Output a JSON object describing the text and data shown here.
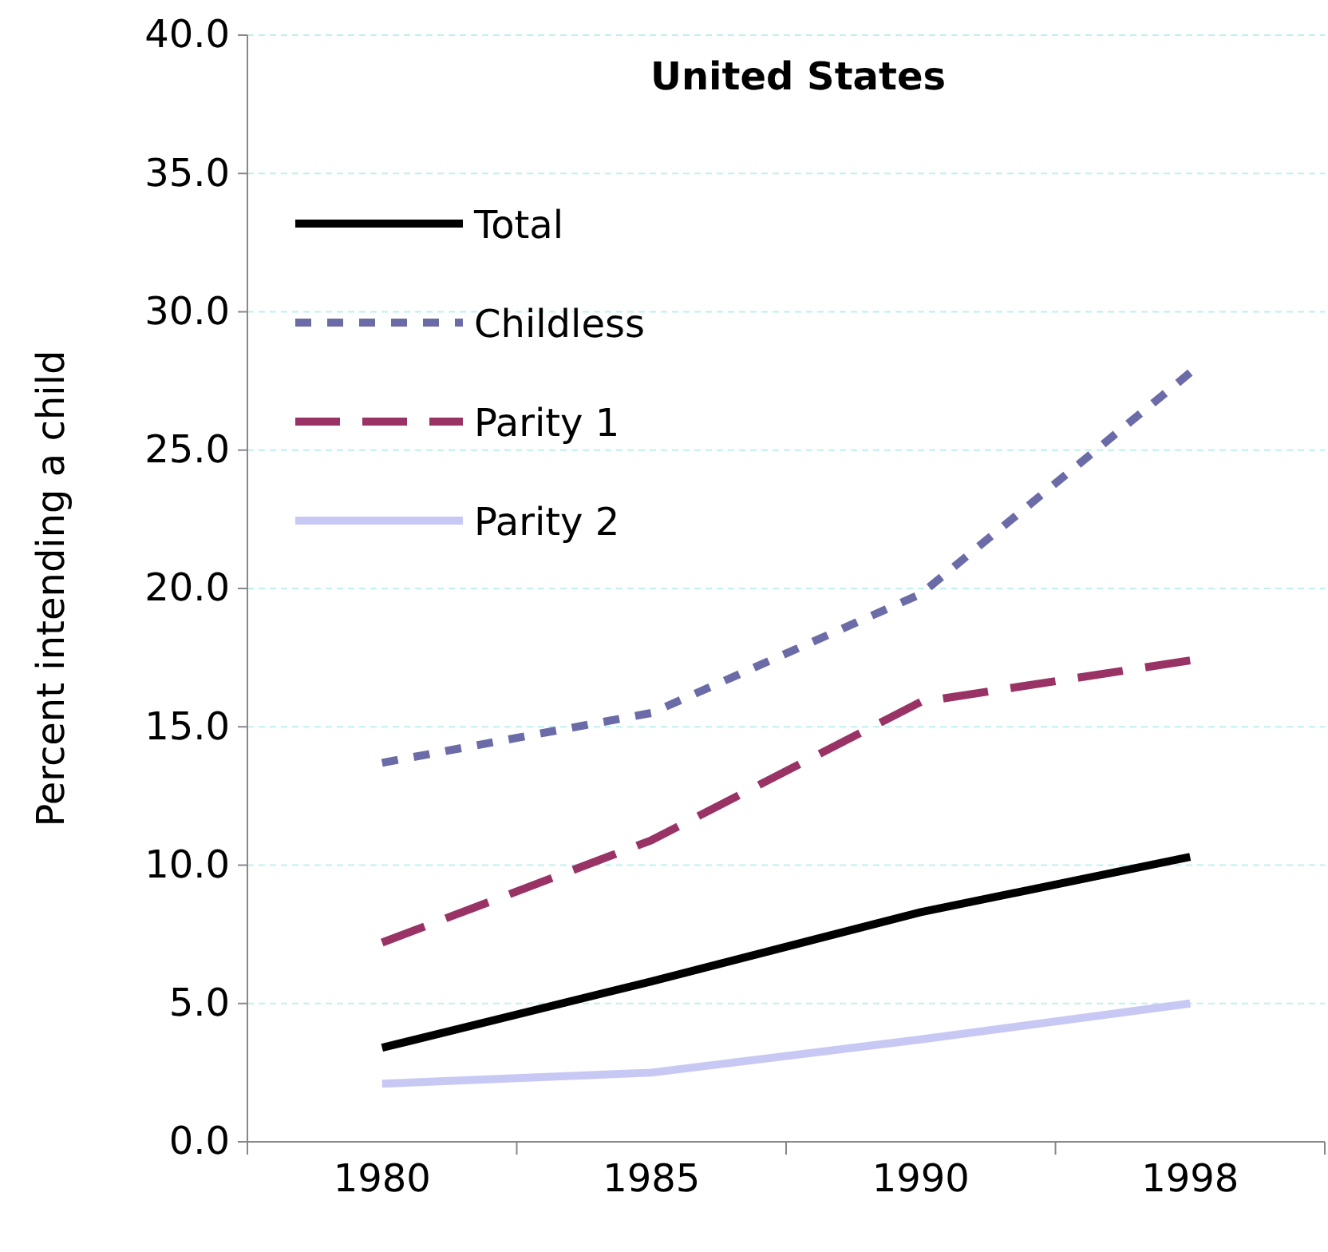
{
  "chart_data": {
    "type": "line",
    "title": "United States",
    "ylabel": "Percent intending a child",
    "categories": [
      "1980",
      "1985",
      "1990",
      "1998"
    ],
    "series": [
      {
        "name": "Total",
        "color": "#000000",
        "line_style": "solid",
        "values": [
          3.4,
          5.8,
          8.3,
          10.3
        ]
      },
      {
        "name": "Childless",
        "color": "#6b6ba8",
        "line_style": "dotted",
        "values": [
          13.7,
          15.5,
          19.8,
          27.8
        ]
      },
      {
        "name": "Parity 1",
        "color": "#993366",
        "line_style": "dashed",
        "values": [
          7.2,
          10.9,
          15.9,
          17.4
        ]
      },
      {
        "name": "Parity 2",
        "color": "#c8c8f5",
        "line_style": "solid",
        "values": [
          2.1,
          2.5,
          3.7,
          5.0
        ]
      }
    ],
    "ylim": [
      0,
      40
    ],
    "yticks": [
      {
        "value": 0,
        "label": "0.0"
      },
      {
        "value": 5,
        "label": "5.0"
      },
      {
        "value": 10,
        "label": "10.0"
      },
      {
        "value": 15,
        "label": "15.0"
      },
      {
        "value": 20,
        "label": "20.0"
      },
      {
        "value": 25,
        "label": "25.0"
      },
      {
        "value": 30,
        "label": "30.0"
      },
      {
        "value": 35,
        "label": "35.0"
      },
      {
        "value": 40,
        "label": "40.0"
      }
    ],
    "grid": "y",
    "legend": "top left",
    "marker": "none"
  }
}
